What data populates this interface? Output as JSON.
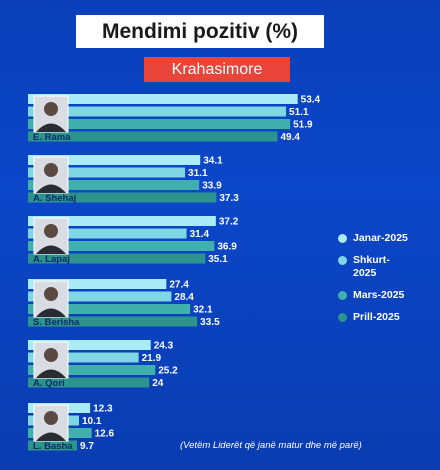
{
  "header": {
    "title": "Mendimi pozitiv (%)",
    "subtitle": "Krahasimore"
  },
  "note": "(Vetëm Liderët që janë matur dhe më parë)",
  "colors": [
    "#a9ecf7",
    "#7fd7e3",
    "#3fb0ae",
    "#2c948c"
  ],
  "chart_data": {
    "type": "bar",
    "orientation": "horizontal",
    "categories": [
      "E. Rama",
      "A. Shehaj",
      "A. Lapaj",
      "S. Berisha",
      "A. Qori",
      "L. Basha"
    ],
    "series": [
      {
        "name": "Janar-2025",
        "values": [
          53.4,
          34.1,
          37.2,
          27.4,
          24.3,
          12.3
        ]
      },
      {
        "name": "Shkurt-2025",
        "values": [
          51.1,
          31.1,
          31.4,
          28.4,
          21.9,
          10.1
        ]
      },
      {
        "name": "Mars-2025",
        "values": [
          51.9,
          33.9,
          36.9,
          32.1,
          25.2,
          12.6
        ]
      },
      {
        "name": "Prill-2025",
        "values": [
          49.4,
          37.3,
          35.1,
          33.5,
          24,
          9.7
        ]
      }
    ],
    "value_labels": [
      [
        "53.4",
        "51.1",
        "51.9",
        "49.4"
      ],
      [
        "34.1",
        "31.1",
        "33.9",
        "37.3"
      ],
      [
        "37.2",
        "31.4",
        "36.9",
        "35.1"
      ],
      [
        "27.4",
        "28.4",
        "32.1",
        "33.5"
      ],
      [
        "24.3",
        "21.9",
        "25.2",
        "24"
      ],
      [
        "12.3",
        "10.1",
        "12.6",
        "9.7"
      ]
    ],
    "legend": "right",
    "grid": false
  }
}
